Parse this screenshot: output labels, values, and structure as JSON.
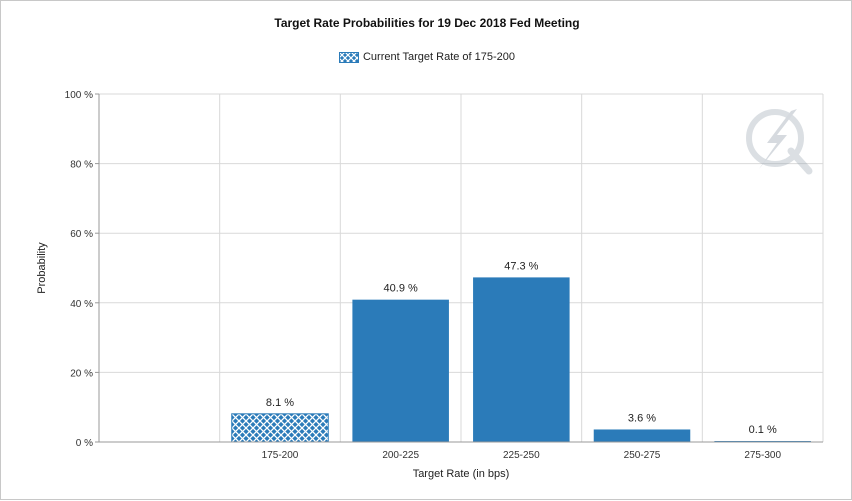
{
  "chart_data": {
    "type": "bar",
    "title": "Target Rate Probabilities for 19 Dec 2018 Fed Meeting",
    "xlabel": "Target Rate (in bps)",
    "ylabel": "Probability",
    "categories": [
      "175-200",
      "200-225",
      "225-250",
      "250-275",
      "275-300"
    ],
    "values": [
      8.1,
      40.9,
      47.3,
      3.6,
      0.1
    ],
    "data_labels": [
      "8.1 %",
      "40.9 %",
      "47.3 %",
      "3.6 %",
      "0.1 %"
    ],
    "current_category_index": 0,
    "ylim": [
      0,
      100
    ],
    "yticks": [
      0,
      20,
      40,
      60,
      80,
      100
    ],
    "ytick_labels": [
      "0 %",
      "20 %",
      "40 %",
      "60 %",
      "80 %",
      "100 %"
    ],
    "grid": true,
    "legend": {
      "position": "top-center",
      "entries": [
        {
          "label": "Current Target Rate of 175-200",
          "style": "crosshatch"
        }
      ]
    },
    "colors": {
      "bar": "#2b7bb9",
      "hatch_bg": "#ffffff",
      "grid": "#d9d9d9"
    }
  },
  "watermark_icon": "quikstrike-logo-icon"
}
